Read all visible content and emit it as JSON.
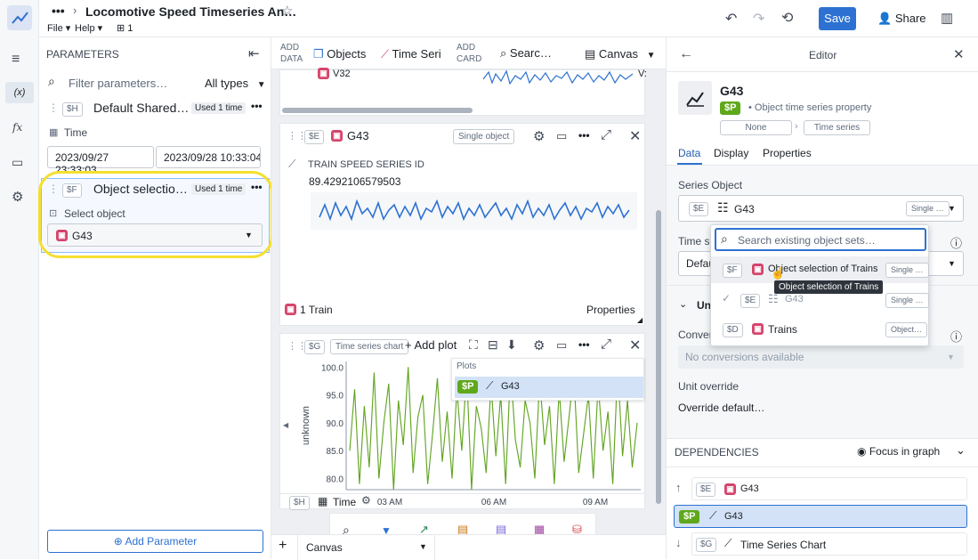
{
  "header": {
    "title": "Locomotive Speed Timeseries An…",
    "menu_file": "File",
    "menu_help": "Help",
    "page_count": "1",
    "save": "Save",
    "share": "Share"
  },
  "left": {
    "title": "PARAMETERS",
    "filter_placeholder": "Filter parameters…",
    "type_filter": "All types",
    "params": [
      {
        "tag": "$H",
        "name": "Default Shared Tim",
        "used": "Used 1 time",
        "label": "Time",
        "start": "2023/09/27 23:33:03",
        "end": "2023/09/28 10:33:04"
      },
      {
        "tag": "$F",
        "name": "Object selection of",
        "used": "Used 1 time",
        "label": "Select object",
        "value": "G43"
      }
    ],
    "add_param": "Add Parameter"
  },
  "toolbar": {
    "add_data": "ADD\nDATA",
    "objects": "Objects",
    "time_series": "Time Seri",
    "add_card": "ADD\nCARD",
    "search": "Searc…",
    "canvas": "Canvas"
  },
  "cards": {
    "top_label": "V32",
    "top_label2": "V:",
    "card1": {
      "tag": "$E",
      "title": "G43",
      "badge": "Single object",
      "section": "TRAIN SPEED SERIES ID",
      "value": "89.4292106579503",
      "footer": "1 Train",
      "properties": "Properties"
    },
    "card2": {
      "tag": "$G",
      "badge": "Time series chart",
      "add_plot": "Add plot",
      "plots_label": "Plots",
      "plot_tag": "$P",
      "plot_name": "G43",
      "footer_tag": "$H",
      "footer_label": "Time"
    }
  },
  "chart_data": {
    "type": "line",
    "ylabel": "unknown",
    "y_ticks": [
      "100.0",
      "95.0",
      "90.0",
      "85.0",
      "80.0"
    ],
    "x_ticks": [
      "03 AM",
      "06 AM",
      "09 AM"
    ],
    "ylim": [
      78,
      101
    ],
    "values": [
      85,
      96,
      79,
      93,
      82,
      99,
      80,
      90,
      97,
      78,
      94,
      86,
      100,
      81,
      91,
      95,
      79,
      88,
      98,
      83,
      92,
      80,
      96,
      85,
      99,
      78,
      93,
      89,
      81,
      97,
      84,
      95,
      79,
      100,
      87,
      82,
      94,
      90,
      80,
      98,
      86,
      93,
      79,
      96,
      83,
      91,
      99,
      81,
      88,
      95,
      80,
      97,
      85,
      92,
      79,
      100,
      84,
      94,
      82,
      90
    ]
  },
  "bottom_tab": "Canvas",
  "editor": {
    "title": "Editor",
    "obj_name": "G43",
    "obj_tag": "$P",
    "obj_type": "Object time series property",
    "none": "None",
    "time_series": "Time series",
    "tabs": [
      "Data",
      "Display",
      "Properties"
    ],
    "series_object_label": "Series Object",
    "series_tag": "$E",
    "series_name": "G43",
    "series_badge": "Single …",
    "time_label": "Time se",
    "time_value": "Defau",
    "unit_section": "Un",
    "conversion_label": "Convert",
    "conversion_placeholder": "No conversions available",
    "unit_override": "Unit override",
    "override_default": "Override default…",
    "deps_title": "DEPENDENCIES",
    "focus": "Focus in graph",
    "deps": [
      {
        "tag": "$E",
        "name": "G43"
      },
      {
        "tag": "$P",
        "name": "G43"
      },
      {
        "tag": "$G",
        "name": "Time Series Chart"
      }
    ]
  },
  "dropdown": {
    "search_placeholder": "Search existing object sets…",
    "items": [
      {
        "tag": "$F",
        "name": "Object selection of Trains",
        "badge": "Single …"
      },
      {
        "tag": "$E",
        "name": "G43",
        "badge": "Single …"
      },
      {
        "tag": "$D",
        "name": "Trains",
        "badge": "Object…"
      }
    ],
    "tooltip": "Object selection of Trains"
  }
}
